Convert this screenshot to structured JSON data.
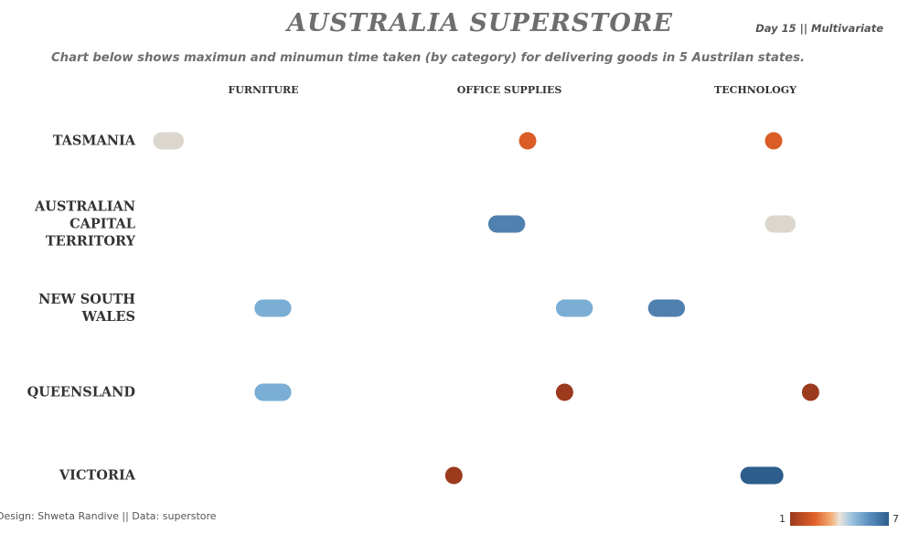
{
  "header": {
    "title": "AUSTRALIA SUPERSTORE",
    "tag": "Day 15 || Multivariate",
    "subtitle": "Chart below shows maximun and minumun time taken (by category) for delivering goods in 5 Austrilan states."
  },
  "footer": {
    "credit": "Design: Shweta Randive   || Data: superstore"
  },
  "legend": {
    "min_label": "1",
    "max_label": "7",
    "scale_colors": [
      "#9c3a1e",
      "#e0602a",
      "#eae4dc",
      "#7aaed4",
      "#2d5e8c"
    ]
  },
  "chart_data": {
    "type": "range",
    "title": "AUSTRALIA SUPERSTORE",
    "columns": [
      "FURNITURE",
      "OFFICE SUPPLIES",
      "TECHNOLOGY"
    ],
    "rows": [
      {
        "label": [
          "TASMANIA"
        ]
      },
      {
        "label": [
          "AUSTRALIAN",
          "CAPITAL",
          "TERRITORY"
        ]
      },
      {
        "label": [
          "NEW SOUTH",
          "WALES"
        ]
      },
      {
        "label": [
          "QUEENSLAND"
        ]
      },
      {
        "label": [
          "VICTORIA"
        ]
      }
    ],
    "x_range_per_panel": [
      0,
      8
    ],
    "marks": [
      {
        "row": 0,
        "col": 0,
        "min": 0.1,
        "max": 1.1,
        "color": "#dcd7ce"
      },
      {
        "row": 0,
        "col": 1,
        "min": 4.0,
        "max": 4.5,
        "color": "#da5d27"
      },
      {
        "row": 0,
        "col": 2,
        "min": 4.0,
        "max": 4.5,
        "color": "#da5d27"
      },
      {
        "row": 1,
        "col": 1,
        "min": 3.0,
        "max": 4.2,
        "color": "#4f80af"
      },
      {
        "row": 1,
        "col": 2,
        "min": 4.0,
        "max": 5.0,
        "color": "#dcd7ce"
      },
      {
        "row": 2,
        "col": 0,
        "min": 3.4,
        "max": 4.6,
        "color": "#7aaed4"
      },
      {
        "row": 2,
        "col": 1,
        "min": 5.2,
        "max": 6.4,
        "color": "#7aaed4"
      },
      {
        "row": 2,
        "col": 2,
        "min": 0.2,
        "max": 1.4,
        "color": "#4f80af"
      },
      {
        "row": 3,
        "col": 0,
        "min": 3.4,
        "max": 4.6,
        "color": "#7aaed4"
      },
      {
        "row": 3,
        "col": 1,
        "min": 5.2,
        "max": 5.6,
        "color": "#9c3a1e"
      },
      {
        "row": 3,
        "col": 2,
        "min": 5.2,
        "max": 5.6,
        "color": "#9c3a1e"
      },
      {
        "row": 4,
        "col": 1,
        "min": 1.6,
        "max": 2.0,
        "color": "#9c3a1e"
      },
      {
        "row": 4,
        "col": 2,
        "min": 3.2,
        "max": 4.6,
        "color": "#2d5e8c"
      }
    ]
  }
}
